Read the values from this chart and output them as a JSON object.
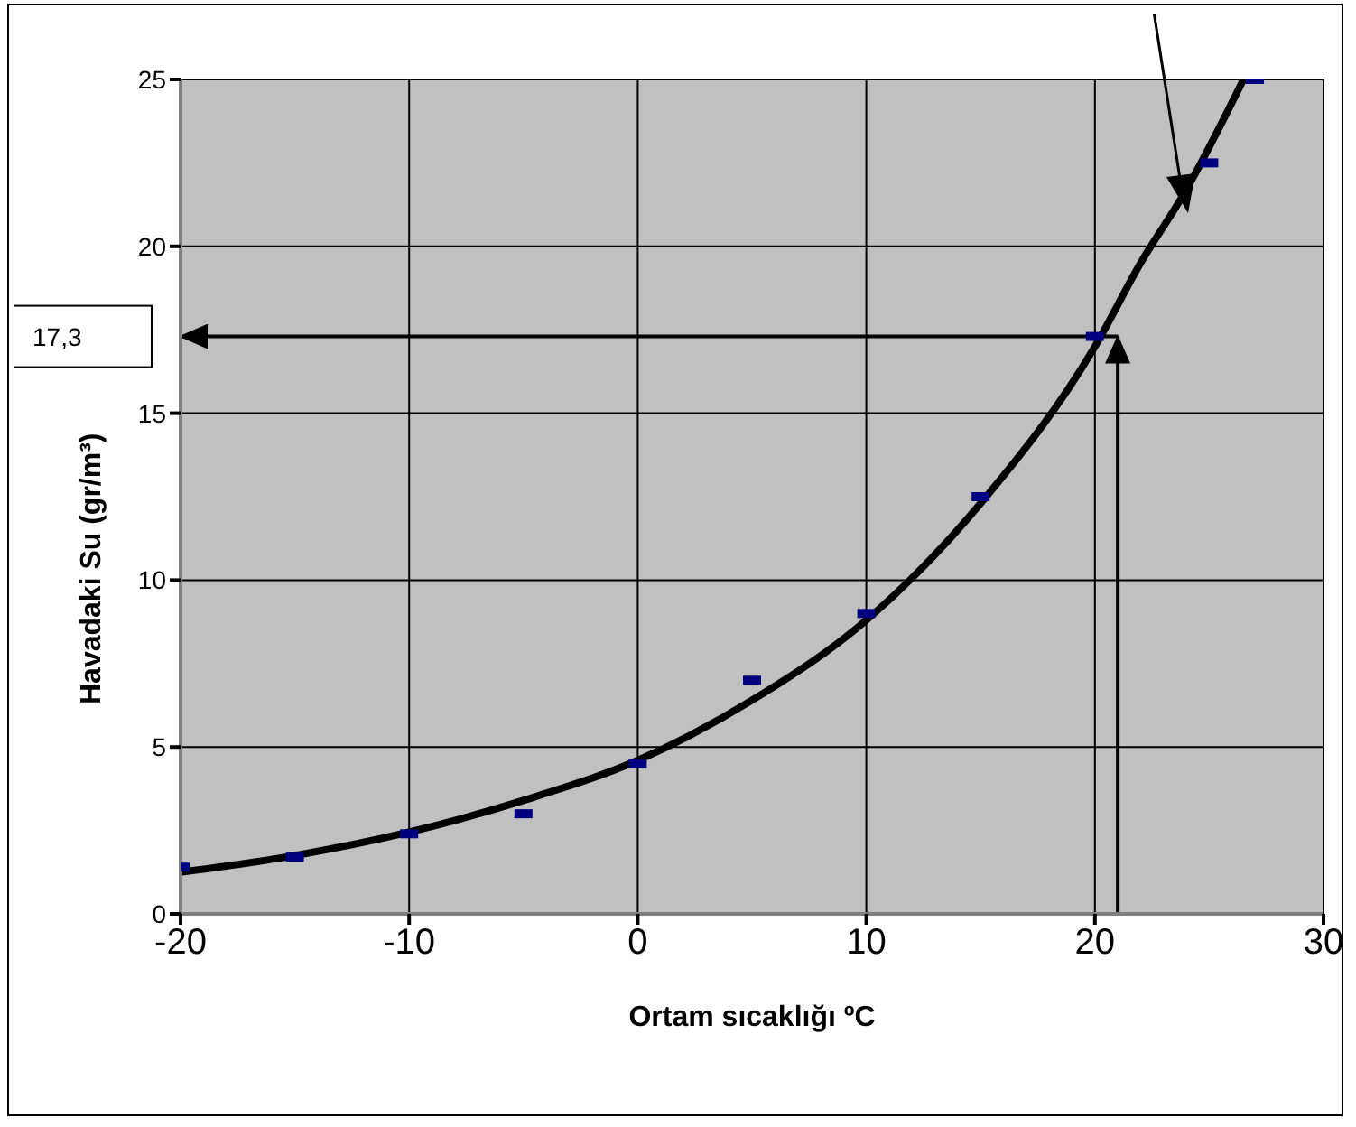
{
  "chart_data": {
    "type": "scatter",
    "xlabel": "Ortam sıcaklığı ºC",
    "ylabel": "Havadaki Su (gr/m³)",
    "xlim": [
      -20,
      30
    ],
    "xticks": [
      -20,
      -10,
      0,
      10,
      20,
      30
    ],
    "ylim": [
      0,
      25
    ],
    "yticks": [
      0,
      5,
      10,
      15,
      20,
      25
    ],
    "grid": true,
    "legend": false,
    "series": [
      {
        "type": "scatter",
        "color": "#000080",
        "x": [
          -20,
          -15,
          -10,
          -5,
          0,
          5,
          10,
          15,
          20,
          25,
          27
        ],
        "values": [
          1.4,
          1.7,
          2.4,
          3.0,
          4.5,
          7.0,
          9.0,
          12.5,
          17.3,
          22.5,
          25
        ]
      },
      {
        "type": "line",
        "color": "#000000",
        "x": [
          -20,
          -15,
          -10,
          -5,
          0,
          5,
          10,
          15,
          20,
          22,
          24,
          26.5
        ],
        "values": [
          1.25,
          1.75,
          2.45,
          3.4,
          4.6,
          6.4,
          8.8,
          12.3,
          17,
          19.5,
          21.7,
          25
        ]
      }
    ],
    "ref_lines": [
      {
        "axis": "x",
        "value": 21,
        "color": "#000000"
      },
      {
        "axis": "y",
        "value": 17.3,
        "label": "17,3",
        "color": "#000000"
      }
    ]
  }
}
